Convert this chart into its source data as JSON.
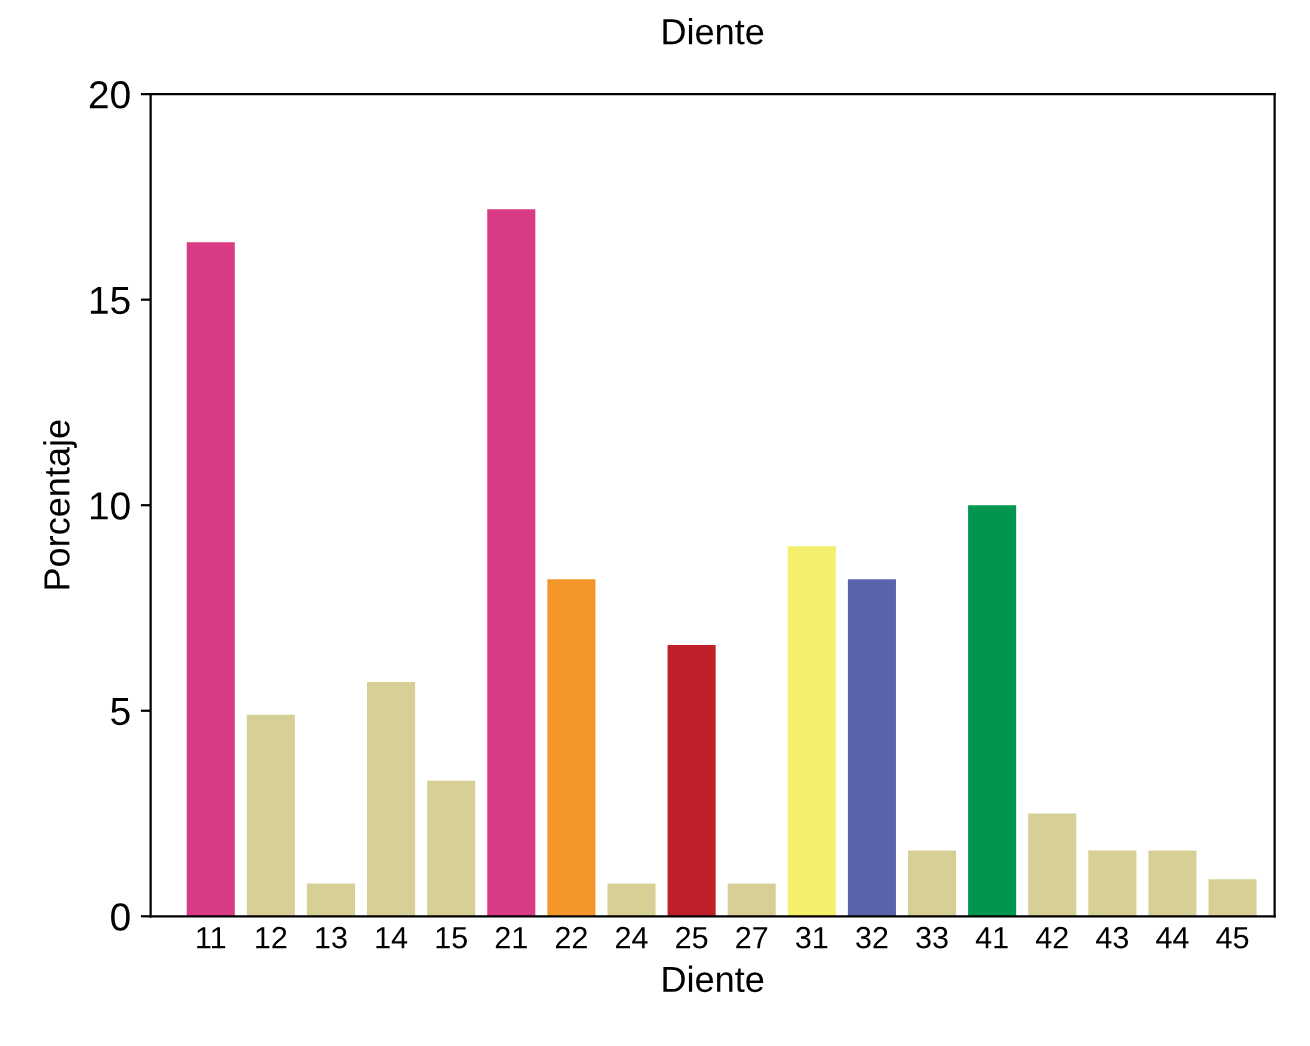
{
  "chart_data": {
    "type": "bar",
    "title": "Diente",
    "xlabel": "Diente",
    "ylabel": "Porcentaje",
    "categories": [
      "11",
      "12",
      "13",
      "14",
      "15",
      "21",
      "22",
      "24",
      "25",
      "27",
      "31",
      "32",
      "33",
      "41",
      "42",
      "43",
      "44",
      "45"
    ],
    "values": [
      16.4,
      4.9,
      0.8,
      5.7,
      3.3,
      17.2,
      8.2,
      0.8,
      6.6,
      0.8,
      9.0,
      8.2,
      1.6,
      10.0,
      2.5,
      1.6,
      1.6,
      0.9
    ],
    "colors": [
      "#d93b85",
      "#d6d096",
      "#d6d096",
      "#d6d096",
      "#d6d096",
      "#d93b85",
      "#f5962a",
      "#d6d096",
      "#c0202a",
      "#d6d096",
      "#f5ef6e",
      "#5a64ae",
      "#d6d096",
      "#009650",
      "#d6d096",
      "#d6d096",
      "#d6d096",
      "#d6d096"
    ],
    "ylim": [
      0,
      20
    ],
    "yticks": [
      0,
      5,
      10,
      15,
      20
    ],
    "grid": false,
    "legend": false
  }
}
